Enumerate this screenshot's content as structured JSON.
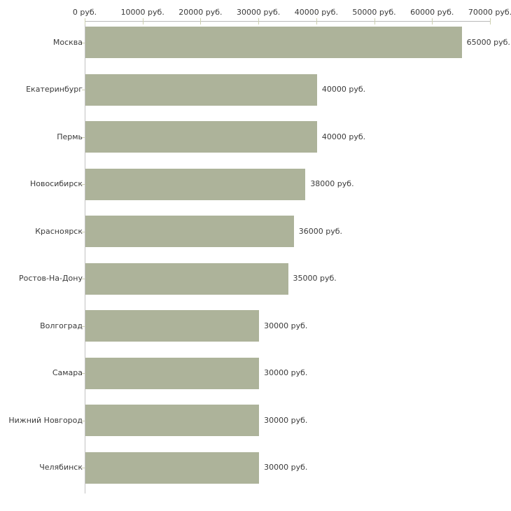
{
  "chart_data": {
    "type": "bar",
    "orientation": "horizontal",
    "title": "",
    "xlabel": "",
    "ylabel": "",
    "categories": [
      "Москва",
      "Екатеринбург",
      "Пермь",
      "Новосибирск",
      "Красноярск",
      "Ростов-На-Дону",
      "Волгоград",
      "Самара",
      "Нижний Новгород",
      "Челябинск"
    ],
    "values": [
      65000,
      40000,
      40000,
      38000,
      36000,
      35000,
      30000,
      30000,
      30000,
      30000
    ],
    "value_labels": [
      "65000 руб.",
      "40000 руб.",
      "40000 руб.",
      "38000 руб.",
      "36000 руб.",
      "35000 руб.",
      "30000 руб.",
      "30000 руб.",
      "30000 руб.",
      "30000 руб."
    ],
    "unit": "руб.",
    "x_axis": {
      "min": 0,
      "max": 70000,
      "ticks": [
        0,
        10000,
        20000,
        30000,
        40000,
        50000,
        60000,
        70000
      ],
      "tick_labels": [
        "0 руб.",
        "10000 руб.",
        "20000 руб.",
        "30000 руб.",
        "40000 руб.",
        "50000 руб.",
        "60000 руб.",
        "70000 руб."
      ],
      "position": "top"
    },
    "grid": false,
    "legend": false,
    "colors": {
      "bar": "#adb39a",
      "axis_line": "#b9b9b9",
      "tick_mark": "#cdd0b0",
      "text": "#3a3a3a",
      "background": "#ffffff"
    }
  }
}
